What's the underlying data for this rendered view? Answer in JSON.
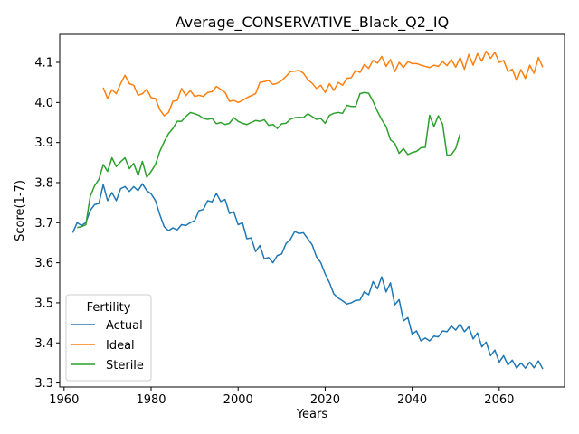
{
  "chart_data": {
    "type": "line",
    "title": "Average_CONSERVATIVE_Black_Q2_IQ",
    "xlabel": "Years",
    "ylabel": "Score(1-7)",
    "xlim": [
      1959,
      2075
    ],
    "ylim": [
      3.29,
      4.17
    ],
    "xticks": [
      1960,
      1980,
      2000,
      2020,
      2040,
      2060
    ],
    "yticks": [
      3.3,
      3.4,
      3.5,
      3.6,
      3.7,
      3.8,
      3.9,
      4.0,
      4.1
    ],
    "xtick_labels": [
      "1960",
      "1980",
      "2000",
      "2020",
      "2040",
      "2060"
    ],
    "ytick_labels": [
      "3.3",
      "3.4",
      "3.5",
      "3.6",
      "3.7",
      "3.8",
      "3.9",
      "4.0",
      "4.1"
    ],
    "grid": false,
    "legend": {
      "title": "Fertility",
      "placement": "lower-left"
    },
    "series": [
      {
        "name": "Actual",
        "color": "#1f77b4",
        "x": [
          1962,
          1963,
          1964,
          1965,
          1966,
          1967,
          1968,
          1969,
          1970,
          1971,
          1972,
          1973,
          1974,
          1975,
          1976,
          1977,
          1978,
          1979,
          1980,
          1981,
          1982,
          1983,
          1984,
          1985,
          1986,
          1987,
          1988,
          1989,
          1990,
          1991,
          1992,
          1993,
          1994,
          1995,
          1996,
          1997,
          1998,
          1999,
          2000,
          2001,
          2002,
          2003,
          2004,
          2005,
          2006,
          2007,
          2008,
          2009,
          2010,
          2011,
          2012,
          2013,
          2014,
          2015,
          2016,
          2017,
          2018,
          2019,
          2020,
          2021,
          2022,
          2023,
          2024,
          2025,
          2026,
          2027,
          2028,
          2029,
          2030,
          2031,
          2032,
          2033,
          2034,
          2035,
          2036,
          2037,
          2038,
          2039,
          2040,
          2041,
          2042,
          2043,
          2044,
          2045,
          2046,
          2047,
          2048,
          2049,
          2050,
          2051,
          2052,
          2053,
          2054,
          2055,
          2056,
          2057,
          2058,
          2059,
          2060,
          2061,
          2062,
          2063,
          2064,
          2065,
          2066,
          2067,
          2068,
          2069,
          2070
        ],
        "values": [
          3.675,
          3.7,
          3.693,
          3.7,
          3.73,
          3.745,
          3.748,
          3.795,
          3.755,
          3.775,
          3.755,
          3.785,
          3.79,
          3.778,
          3.79,
          3.78,
          3.797,
          3.78,
          3.772,
          3.755,
          3.72,
          3.69,
          3.68,
          3.687,
          3.682,
          3.695,
          3.693,
          3.7,
          3.705,
          3.73,
          3.733,
          3.755,
          3.752,
          3.773,
          3.753,
          3.758,
          3.723,
          3.727,
          3.695,
          3.7,
          3.66,
          3.662,
          3.628,
          3.643,
          3.61,
          3.613,
          3.6,
          3.618,
          3.622,
          3.648,
          3.658,
          3.678,
          3.673,
          3.675,
          3.66,
          3.645,
          3.615,
          3.6,
          3.572,
          3.55,
          3.522,
          3.512,
          3.505,
          3.497,
          3.5,
          3.506,
          3.507,
          3.528,
          3.52,
          3.553,
          3.535,
          3.565,
          3.527,
          3.55,
          3.495,
          3.508,
          3.455,
          3.463,
          3.422,
          3.43,
          3.405,
          3.412,
          3.405,
          3.417,
          3.415,
          3.43,
          3.428,
          3.442,
          3.432,
          3.447,
          3.428,
          3.44,
          3.41,
          3.425,
          3.39,
          3.402,
          3.368,
          3.382,
          3.352,
          3.368,
          3.345,
          3.357,
          3.337,
          3.35,
          3.337,
          3.352,
          3.338,
          3.355,
          3.335
        ]
      },
      {
        "name": "Ideal",
        "color": "#ff7f0e",
        "x": [
          1969,
          1970,
          1971,
          1972,
          1973,
          1974,
          1975,
          1976,
          1977,
          1978,
          1979,
          1980,
          1981,
          1982,
          1983,
          1984,
          1985,
          1986,
          1987,
          1988,
          1989,
          1990,
          1991,
          1992,
          1993,
          1994,
          1995,
          1996,
          1997,
          1998,
          1999,
          2000,
          2001,
          2002,
          2003,
          2004,
          2005,
          2006,
          2007,
          2008,
          2009,
          2010,
          2011,
          2012,
          2013,
          2014,
          2015,
          2016,
          2017,
          2018,
          2019,
          2020,
          2021,
          2022,
          2023,
          2024,
          2025,
          2026,
          2027,
          2028,
          2029,
          2030,
          2031,
          2032,
          2033,
          2034,
          2035,
          2036,
          2037,
          2038,
          2039,
          2040,
          2041,
          2042,
          2043,
          2044,
          2045,
          2046,
          2047,
          2048,
          2049,
          2050,
          2051,
          2052,
          2053,
          2054,
          2055,
          2056,
          2057,
          2058,
          2059,
          2060,
          2061,
          2062,
          2063,
          2064,
          2065,
          2066,
          2067,
          2068,
          2069,
          2070
        ],
        "values": [
          4.037,
          4.01,
          4.032,
          4.022,
          4.047,
          4.068,
          4.047,
          4.043,
          4.018,
          4.022,
          4.033,
          4.012,
          4.01,
          3.982,
          3.967,
          3.975,
          4.003,
          4.005,
          4.035,
          4.017,
          4.03,
          4.015,
          4.018,
          4.015,
          4.025,
          4.027,
          4.04,
          4.033,
          4.025,
          4.003,
          4.005,
          4.0,
          4.005,
          4.012,
          4.017,
          4.022,
          4.05,
          4.052,
          4.055,
          4.045,
          4.048,
          4.055,
          4.065,
          4.077,
          4.078,
          4.08,
          4.073,
          4.057,
          4.048,
          4.035,
          4.043,
          4.025,
          4.047,
          4.03,
          4.05,
          4.043,
          4.06,
          4.062,
          4.08,
          4.075,
          4.095,
          4.085,
          4.105,
          4.098,
          4.115,
          4.09,
          4.107,
          4.077,
          4.1,
          4.087,
          4.102,
          4.097,
          4.097,
          4.093,
          4.09,
          4.087,
          4.093,
          4.09,
          4.102,
          4.092,
          4.107,
          4.088,
          4.112,
          4.083,
          4.12,
          4.093,
          4.122,
          4.103,
          4.128,
          4.11,
          4.125,
          4.1,
          4.105,
          4.077,
          4.083,
          4.055,
          4.082,
          4.06,
          4.093,
          4.073,
          4.112,
          4.088
        ]
      },
      {
        "name": "Sterile",
        "color": "#2ca02c",
        "x": [
          1963,
          1964,
          1965,
          1966,
          1967,
          1968,
          1969,
          1970,
          1971,
          1972,
          1973,
          1974,
          1975,
          1976,
          1977,
          1978,
          1979,
          1980,
          1981,
          1982,
          1983,
          1984,
          1985,
          1986,
          1987,
          1988,
          1989,
          1990,
          1991,
          1992,
          1993,
          1994,
          1995,
          1996,
          1997,
          1998,
          1999,
          2000,
          2001,
          2002,
          2003,
          2004,
          2005,
          2006,
          2007,
          2008,
          2009,
          2010,
          2011,
          2012,
          2013,
          2014,
          2015,
          2016,
          2017,
          2018,
          2019,
          2020,
          2021,
          2022,
          2023,
          2024,
          2025,
          2026,
          2027,
          2028,
          2029,
          2030,
          2031,
          2032,
          2033,
          2034,
          2035,
          2036,
          2037,
          2038,
          2039,
          2040,
          2041,
          2042,
          2043,
          2044,
          2045,
          2046,
          2047,
          2048,
          2049,
          2050,
          2051
        ],
        "values": [
          3.688,
          3.69,
          3.695,
          3.765,
          3.792,
          3.808,
          3.845,
          3.828,
          3.862,
          3.84,
          3.852,
          3.862,
          3.835,
          3.848,
          3.818,
          3.853,
          3.813,
          3.828,
          3.845,
          3.878,
          3.902,
          3.922,
          3.935,
          3.953,
          3.953,
          3.965,
          3.975,
          3.972,
          3.968,
          3.96,
          3.958,
          3.96,
          3.947,
          3.95,
          3.945,
          3.948,
          3.962,
          3.953,
          3.948,
          3.945,
          3.95,
          3.955,
          3.953,
          3.957,
          3.943,
          3.945,
          3.935,
          3.947,
          3.948,
          3.958,
          3.962,
          3.963,
          3.962,
          3.972,
          3.965,
          3.958,
          3.96,
          3.948,
          3.968,
          3.973,
          3.975,
          3.973,
          3.993,
          3.99,
          3.99,
          4.022,
          4.025,
          4.023,
          4.003,
          3.978,
          3.957,
          3.94,
          3.907,
          3.898,
          3.873,
          3.885,
          3.87,
          3.875,
          3.878,
          3.887,
          3.888,
          3.968,
          3.94,
          3.967,
          3.945,
          3.868,
          3.87,
          3.885,
          3.922
        ]
      }
    ]
  }
}
